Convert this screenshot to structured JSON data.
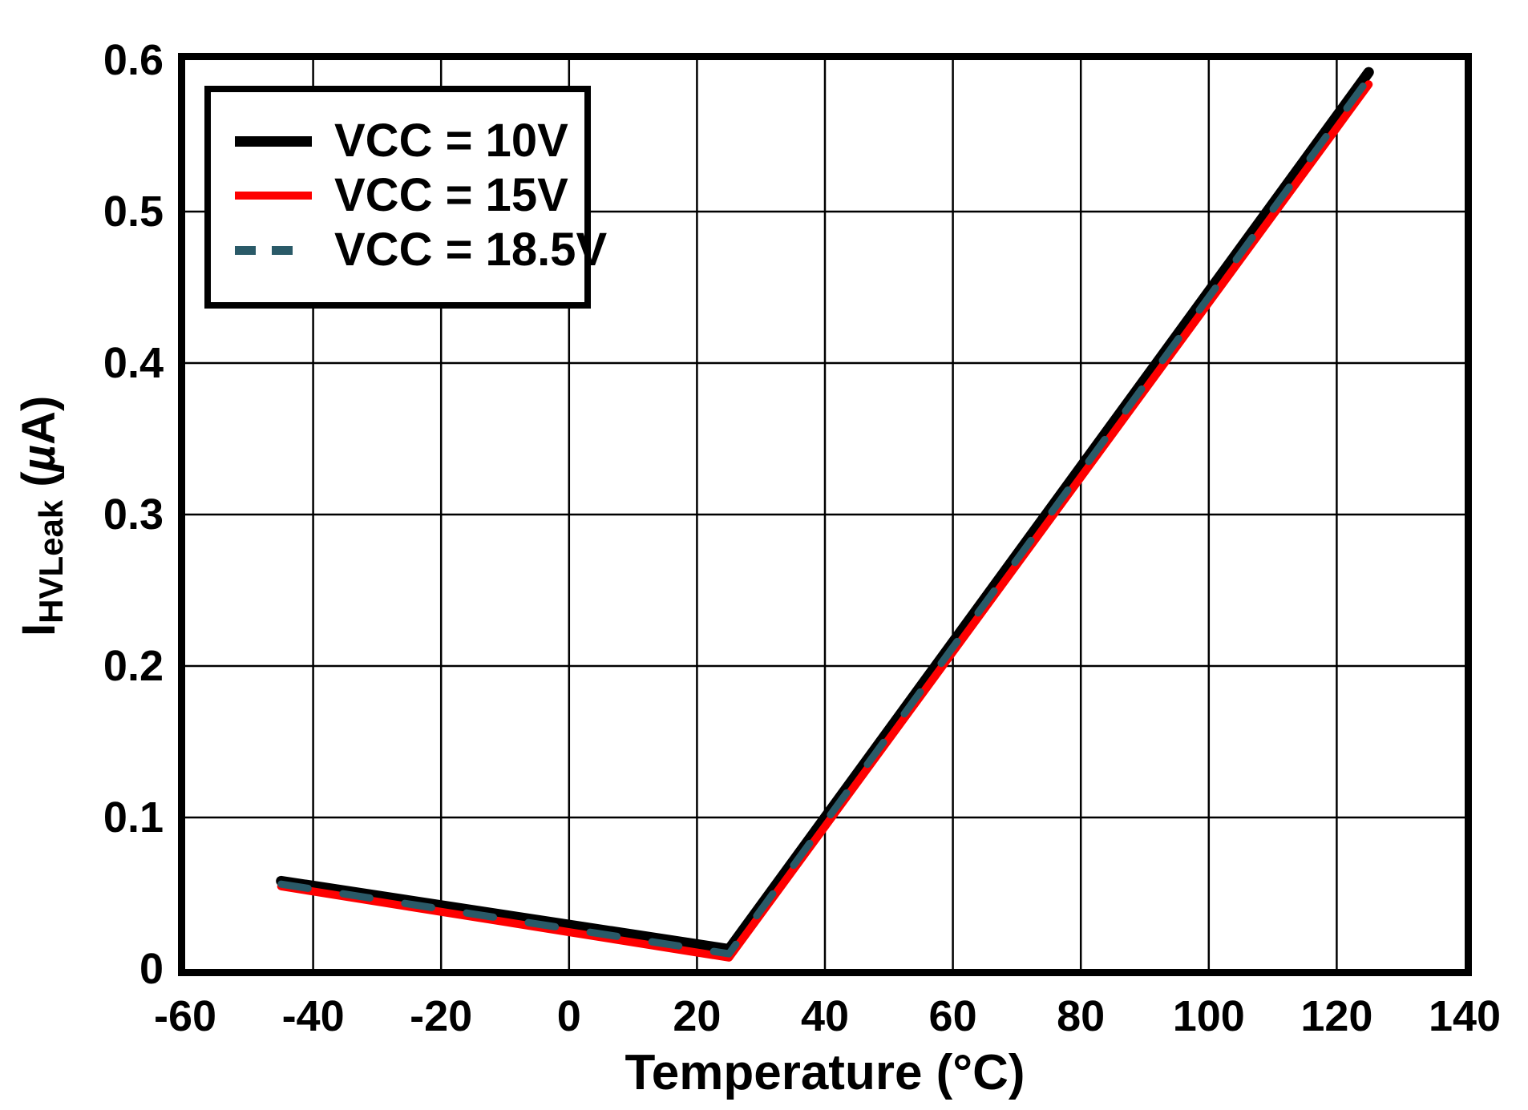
{
  "figure": {
    "background": "#ffffff",
    "frame_color": "#000000",
    "grid_color": "#000000"
  },
  "axes": {
    "x": {
      "title": "Temperature (°C)",
      "min": -60,
      "max": 140,
      "ticks": [
        -60,
        -40,
        -20,
        0,
        20,
        40,
        60,
        80,
        100,
        120,
        140
      ]
    },
    "y": {
      "title_symbol": "I",
      "title_subscript": "HVLeak",
      "unit_open": " (",
      "unit_mu": "µ",
      "unit_close": "A)",
      "min": 0,
      "max": 0.6,
      "ticks": [
        0,
        0.1,
        0.2,
        0.3,
        0.4,
        0.5,
        0.6
      ]
    }
  },
  "legend": {
    "entries": [
      {
        "label": "VCC = 10V",
        "color": "#000000",
        "line_style": "solid",
        "swatch_height": 13
      },
      {
        "label": "VCC = 15V",
        "color": "#fe0000",
        "line_style": "solid",
        "swatch_height": 10
      },
      {
        "label": "VCC = 18.5V",
        "color": "#2a5a68",
        "line_style": "dashed",
        "swatch_height": 11
      }
    ]
  },
  "chart_data": {
    "type": "line",
    "title": "",
    "xlabel": "Temperature (°C)",
    "ylabel": "IHVLeak (µA)",
    "xlim": [
      -60,
      140
    ],
    "ylim": [
      0,
      0.6
    ],
    "xticks": [
      -60,
      -40,
      -20,
      0,
      20,
      40,
      60,
      80,
      100,
      120,
      140
    ],
    "yticks": [
      0,
      0.1,
      0.2,
      0.3,
      0.4,
      0.5,
      0.6
    ],
    "grid": true,
    "legend_position": "top-left",
    "series": [
      {
        "name": "VCC = 10V",
        "color": "#000000",
        "line_style": "solid",
        "line_width": 13,
        "points": [
          [
            -45,
            0.058
          ],
          [
            25,
            0.013
          ],
          [
            125,
            0.592
          ]
        ]
      },
      {
        "name": "VCC = 15V",
        "color": "#fe0000",
        "line_style": "solid",
        "line_width": 10,
        "points": [
          [
            -45,
            0.0545
          ],
          [
            25,
            0.0075
          ],
          [
            125,
            0.584
          ]
        ]
      },
      {
        "name": "VCC = 18.5V",
        "color": "#2a5a68",
        "line_style": "dashed",
        "line_width": 9,
        "dash": [
          34,
          44
        ],
        "points": [
          [
            -45,
            0.056
          ],
          [
            25,
            0.01
          ],
          [
            125,
            0.588
          ]
        ]
      }
    ]
  }
}
